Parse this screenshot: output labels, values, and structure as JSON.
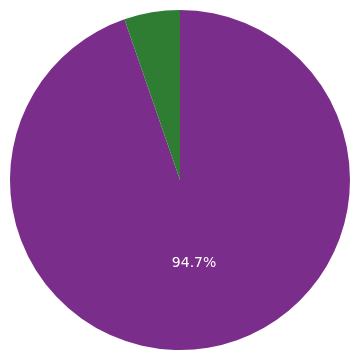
{
  "chart_data": {
    "type": "pie",
    "values": [
      94.7,
      5.3
    ],
    "colors": [
      "#7b2d8b",
      "#2e7d32"
    ],
    "data_labels": true,
    "value_labels": [
      "94.7%",
      null
    ]
  }
}
